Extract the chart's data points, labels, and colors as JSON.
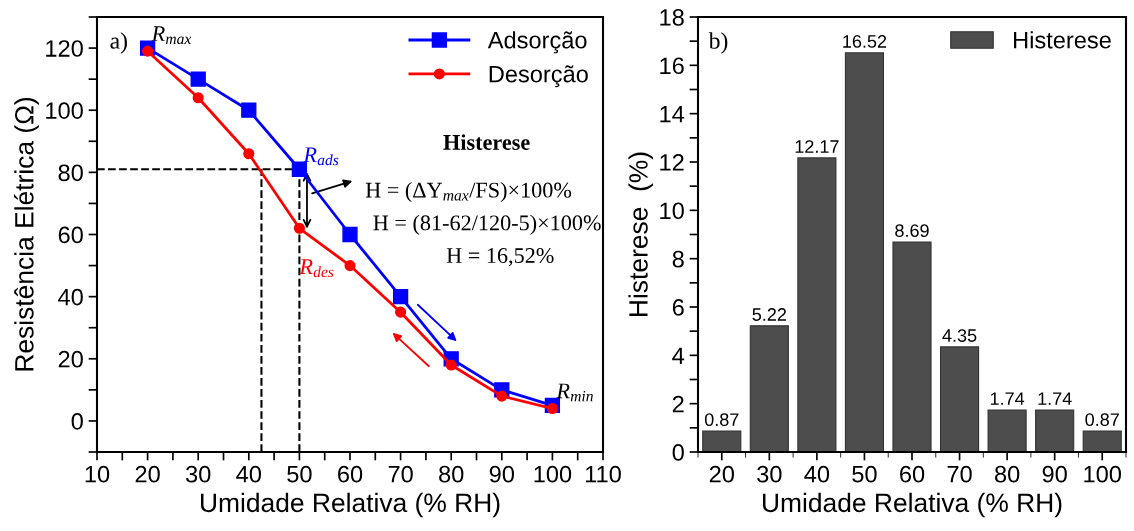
{
  "chart_data": [
    {
      "type": "line",
      "xlabel": "Umidade Relativa (% RH)",
      "ylabel": "Resistência Elétrica (Ω)",
      "x": [
        20,
        30,
        40,
        50,
        60,
        70,
        80,
        90,
        100
      ],
      "series": [
        {
          "name": "Adsorção",
          "color": "#0000ff",
          "marker": "square",
          "values": [
            120,
            110,
            100,
            81,
            60,
            40,
            20,
            10,
            5
          ]
        },
        {
          "name": "Desorção",
          "color": "#ff0000",
          "marker": "circle",
          "values": [
            119,
            104,
            86,
            62,
            50,
            35,
            18,
            8,
            4
          ]
        }
      ],
      "xlim": [
        10,
        110
      ],
      "ylim": [
        -10,
        130
      ],
      "xticks": [
        10,
        {
          "value": 15,
          "label": null
        },
        20,
        {
          "value": 25,
          "label": null
        },
        30,
        {
          "value": 35,
          "label": null
        },
        40,
        {
          "value": 45,
          "label": null
        },
        50,
        {
          "value": 55,
          "label": null
        },
        60,
        {
          "value": 65,
          "label": null
        },
        70,
        {
          "value": 75,
          "label": null
        },
        80,
        {
          "value": 85,
          "label": null
        },
        90,
        {
          "value": 95,
          "label": null
        },
        100,
        {
          "value": 105,
          "label": null
        },
        110
      ],
      "yticks": [
        {
          "value": -10,
          "label": null
        },
        0,
        {
          "value": 10,
          "label": null
        },
        20,
        {
          "value": 30,
          "label": null
        },
        40,
        {
          "value": 50,
          "label": null
        },
        60,
        {
          "value": 70,
          "label": null
        },
        80,
        {
          "value": 90,
          "label": null
        },
        100,
        {
          "value": 110,
          "label": null
        },
        120,
        {
          "value": 130,
          "label": null
        }
      ],
      "ref_lines": [
        {
          "axis": "y",
          "value": 81,
          "line_style": "dashed",
          "color": "#000000"
        },
        {
          "axis": "x",
          "value": 42.5,
          "line_style": "dashed",
          "color": "#000000"
        },
        {
          "axis": "x",
          "value": 50,
          "line_style": "dashed",
          "color": "#000000"
        }
      ],
      "annotations": [
        "a)",
        {
          "text": "R$_{max}$",
          "x": 20,
          "y": 120
        },
        {
          "text": "R$_{ads}$",
          "x": 50,
          "y": 81
        },
        {
          "text": "R$_{des}$",
          "x": 50,
          "y": 62
        },
        {
          "text": "R$_{min}$",
          "x": 100,
          "y": 5
        },
        "Histerese",
        "H = (ΔY$_{max}$/FS)×100%",
        "H = (81-62/120-5)×100%",
        "H = 16,52%"
      ],
      "legend": "top right",
      "grid": false,
      "line_style": "solid"
    },
    {
      "type": "bar",
      "xlabel": "Umidade Relativa (% RH)",
      "ylabel": "Histerese  (%)",
      "categories": [
        "20",
        "30",
        "40",
        "50",
        "60",
        "70",
        "80",
        "90",
        "100"
      ],
      "series": [
        {
          "name": "Histerese",
          "color": "#4d4d4d",
          "values": [
            0.87,
            5.22,
            12.17,
            16.52,
            8.69,
            4.35,
            1.74,
            1.74,
            0.87
          ]
        }
      ],
      "ylim": [
        0,
        18
      ],
      "yticks": [
        0,
        {
          "value": 1,
          "label": null
        },
        2,
        {
          "value": 3,
          "label": null
        },
        4,
        {
          "value": 5,
          "label": null
        },
        6,
        {
          "value": 7,
          "label": null
        },
        8,
        {
          "value": 9,
          "label": null
        },
        10,
        {
          "value": 11,
          "label": null
        },
        12,
        {
          "value": 13,
          "label": null
        },
        14,
        {
          "value": 15,
          "label": null
        },
        16,
        {
          "value": 17,
          "label": null
        },
        18
      ],
      "annotations": [
        "b)"
      ],
      "data_labels": true,
      "legend": "top right",
      "grid": false
    }
  ]
}
